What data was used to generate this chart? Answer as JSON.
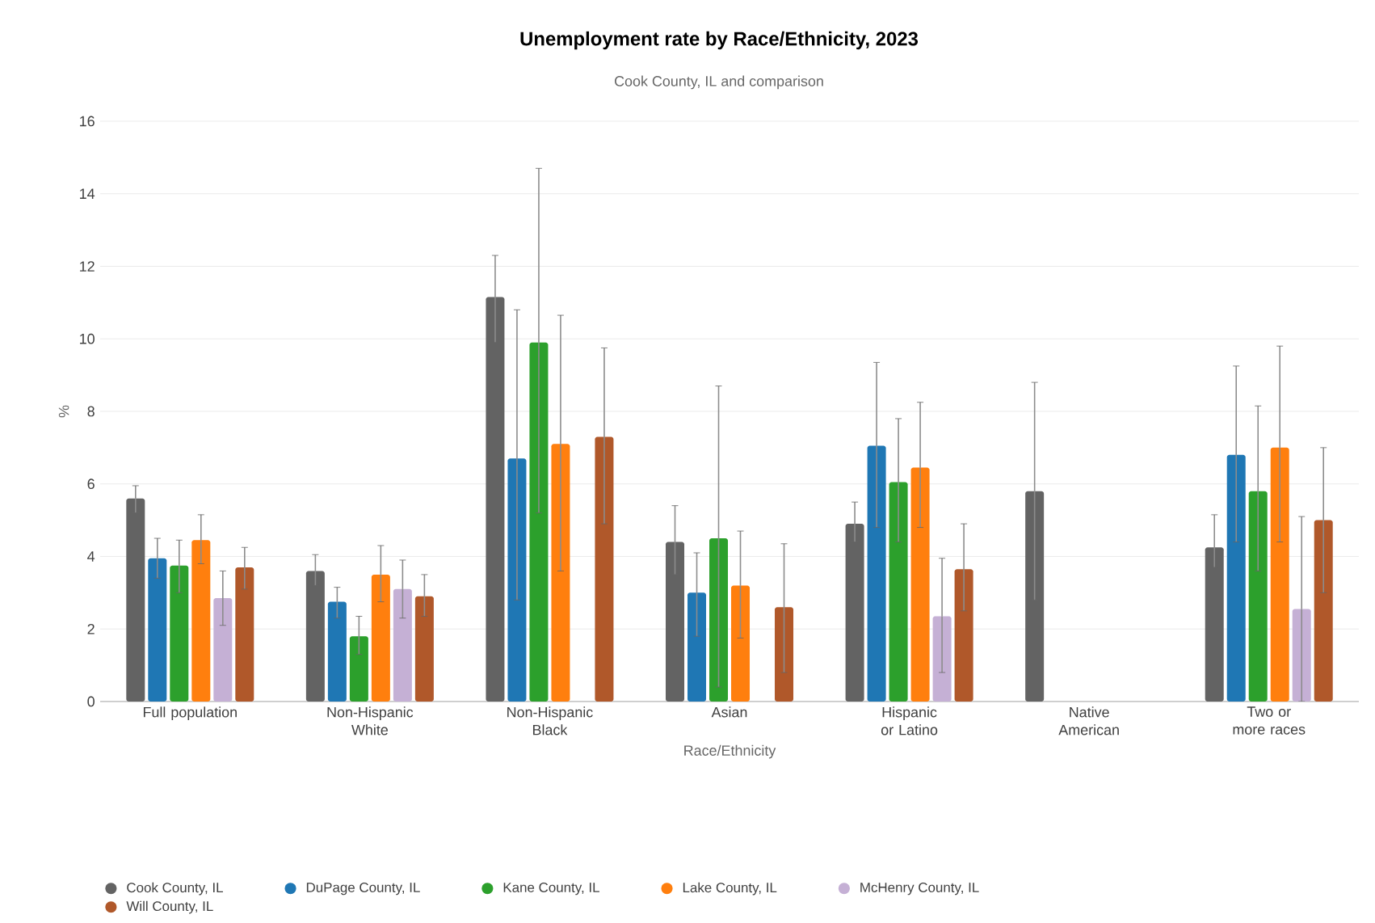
{
  "chart_data": {
    "type": "bar",
    "title": "Unemployment rate by Race/Ethnicity, 2023",
    "subtitle": "Cook County, IL and comparison",
    "xlabel": "Race/Ethnicity",
    "ylabel": "%",
    "categories": [
      "Full population",
      "Non-Hispanic White",
      "Non-Hispanic Black",
      "Asian",
      "Hispanic or Latino",
      "Native American",
      "Two or more races"
    ],
    "ylim": [
      0,
      16
    ],
    "yticks": [
      0,
      2,
      4,
      6,
      8,
      10,
      12,
      14,
      16
    ],
    "grid": "y",
    "legend": "bottom",
    "series": [
      {
        "name": "Cook County, IL",
        "color": "#636363",
        "values": [
          5.6,
          3.6,
          11.15,
          4.4,
          4.9,
          5.8,
          4.25
        ],
        "errors": [
          [
            5.2,
            5.95
          ],
          [
            3.2,
            4.05
          ],
          [
            9.9,
            12.3
          ],
          [
            3.5,
            5.4
          ],
          [
            4.4,
            5.5
          ],
          [
            2.8,
            8.8
          ],
          [
            3.7,
            5.15
          ]
        ]
      },
      {
        "name": "DuPage County, IL",
        "color": "#1f77b4",
        "values": [
          3.95,
          2.75,
          6.7,
          3.0,
          7.05,
          null,
          6.8
        ],
        "errors": [
          [
            3.4,
            4.5
          ],
          [
            2.3,
            3.15
          ],
          [
            2.8,
            10.8
          ],
          [
            1.8,
            4.1
          ],
          [
            4.8,
            9.35
          ],
          null,
          [
            4.4,
            9.25
          ]
        ]
      },
      {
        "name": "Kane County, IL",
        "color": "#2ca02c",
        "values": [
          3.75,
          1.8,
          9.9,
          4.5,
          6.05,
          null,
          5.8
        ],
        "errors": [
          [
            3.0,
            4.45
          ],
          [
            1.3,
            2.35
          ],
          [
            5.2,
            14.7
          ],
          [
            0.4,
            8.7
          ],
          [
            4.4,
            7.8
          ],
          null,
          [
            3.6,
            8.15
          ]
        ]
      },
      {
        "name": "Lake County, IL",
        "color": "#ff7f0e",
        "values": [
          4.45,
          3.5,
          7.1,
          3.2,
          6.45,
          null,
          7.0
        ],
        "errors": [
          [
            3.8,
            5.15
          ],
          [
            2.75,
            4.3
          ],
          [
            3.6,
            10.65
          ],
          [
            1.75,
            4.7
          ],
          [
            4.8,
            8.25
          ],
          null,
          [
            4.4,
            9.8
          ]
        ]
      },
      {
        "name": "McHenry County, IL",
        "color": "#c5b0d5",
        "values": [
          2.85,
          3.1,
          null,
          null,
          2.35,
          null,
          2.55
        ],
        "errors": [
          [
            2.1,
            3.6
          ],
          [
            2.3,
            3.9
          ],
          null,
          null,
          [
            0.8,
            3.95
          ],
          null,
          [
            0.0,
            5.1
          ]
        ]
      },
      {
        "name": "Will County, IL",
        "color": "#b0582a",
        "values": [
          3.7,
          2.9,
          7.3,
          2.6,
          3.65,
          null,
          5.0
        ],
        "errors": [
          [
            3.1,
            4.25
          ],
          [
            2.35,
            3.5
          ],
          [
            4.9,
            9.75
          ],
          [
            0.8,
            4.35
          ],
          [
            2.5,
            4.9
          ],
          null,
          [
            3.0,
            7.0
          ]
        ]
      }
    ]
  }
}
